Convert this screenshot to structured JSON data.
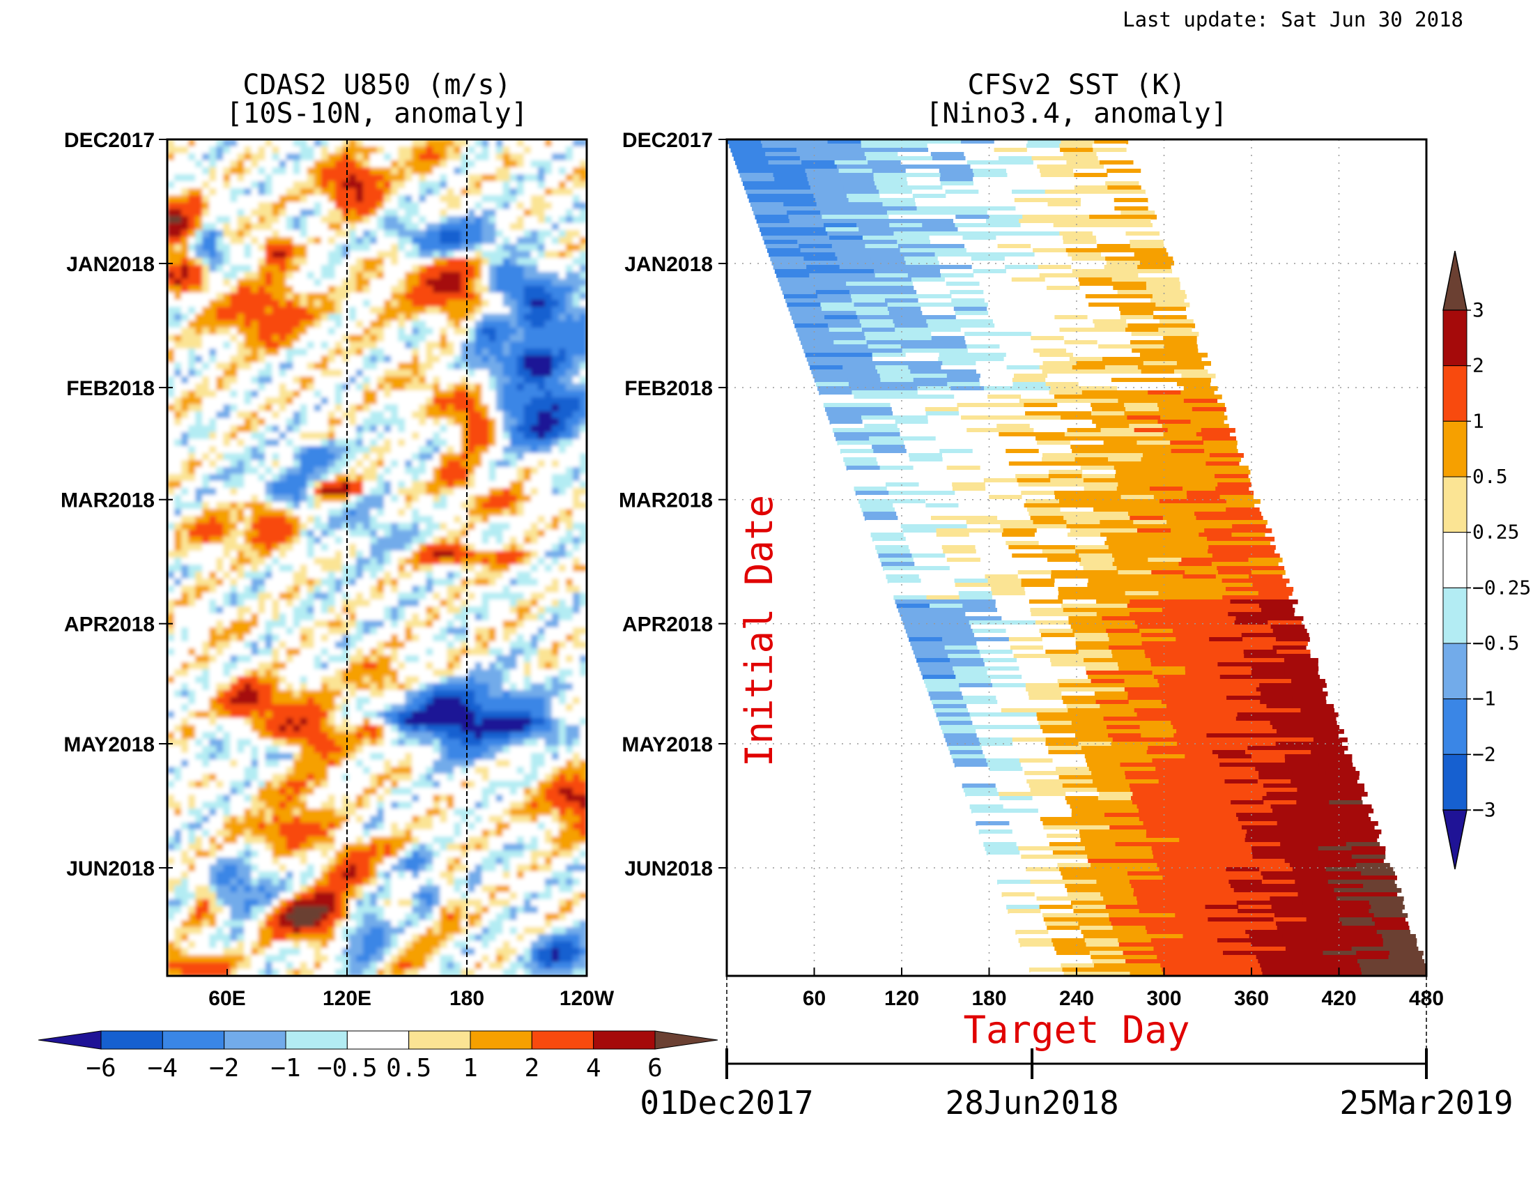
{
  "last_update": "Last update: Sat Jun 30 2018",
  "chart_data": [
    {
      "type": "heatmap",
      "title": "CDAS2 U850 (m/s)",
      "subtitle": "[10S-10N, anomaly]",
      "x_tick_labels": [
        "60E",
        "120E",
        "180",
        "120W"
      ],
      "x_tick_lon_east": [
        60,
        120,
        180,
        240
      ],
      "xlim_lon_east": [
        30,
        240
      ],
      "y_tick_labels": [
        "DEC2017",
        "JAN2018",
        "FEB2018",
        "MAR2018",
        "APR2018",
        "MAY2018",
        "JUN2018"
      ],
      "y_tick_dates": [
        "2017-12-01",
        "2018-01-01",
        "2018-02-01",
        "2018-03-01",
        "2018-04-01",
        "2018-05-01",
        "2018-06-01"
      ],
      "ylim_dates": [
        "2017-12-01",
        "2018-06-28"
      ],
      "y_direction": "down",
      "reference_lines_lon_east": [
        120,
        180
      ],
      "colorbar": {
        "orientation": "horizontal",
        "levels": [
          -6,
          -4,
          -2,
          -1,
          -0.5,
          0.5,
          1,
          2,
          4,
          6
        ],
        "labels": [
          "−6",
          "−4",
          "−2",
          "−1",
          "−0.5",
          "0.5",
          "1",
          "2",
          "4",
          "6"
        ],
        "colors": [
          "#1f1396",
          "#1660d0",
          "#3a86e6",
          "#72abea",
          "#b3ecf3",
          "#ffffff",
          "#fbe494",
          "#f6a000",
          "#f84a0e",
          "#a50a0a",
          "#6b4032"
        ]
      },
      "grid": false
    },
    {
      "type": "heatmap",
      "title": "CFSv2 SST (K)",
      "subtitle": "[Nino3.4, anomaly]",
      "xlabel": "Target Day",
      "ylabel": "Initial Date",
      "x_tick_labels": [
        "60",
        "120",
        "180",
        "240",
        "300",
        "360",
        "420",
        "480"
      ],
      "x_ticks": [
        60,
        120,
        180,
        240,
        300,
        360,
        420,
        480
      ],
      "xlim": [
        0,
        480
      ],
      "y_tick_labels": [
        "DEC2017",
        "JAN2018",
        "FEB2018",
        "MAR2018",
        "APR2018",
        "MAY2018",
        "JUN2018"
      ],
      "y_tick_dates": [
        "2017-12-01",
        "2018-01-01",
        "2018-02-01",
        "2018-03-01",
        "2018-04-01",
        "2018-05-01",
        "2018-06-01"
      ],
      "ylim_dates": [
        "2017-12-01",
        "2018-06-28"
      ],
      "date_axis_labels": [
        "01Dec2017",
        "28Jun2018",
        "25Mar2019"
      ],
      "date_axis_dates": [
        "2017-12-01",
        "2018-06-28",
        "2019-03-25"
      ],
      "grid": true,
      "colorbar": {
        "orientation": "vertical",
        "levels": [
          -3,
          -2,
          -1,
          -0.5,
          -0.25,
          0.25,
          0.5,
          1,
          2,
          3
        ],
        "labels": [
          "−3",
          "−2",
          "−1",
          "−0.5",
          "−0.25",
          "0.25",
          "0.5",
          "1",
          "2",
          "3"
        ],
        "colors": [
          "#1f1396",
          "#1660d0",
          "#3a86e6",
          "#72abea",
          "#b3ecf3",
          "#ffffff",
          "#fbe494",
          "#f6a000",
          "#f84a0e",
          "#a50a0a",
          "#6b4032"
        ]
      }
    }
  ]
}
